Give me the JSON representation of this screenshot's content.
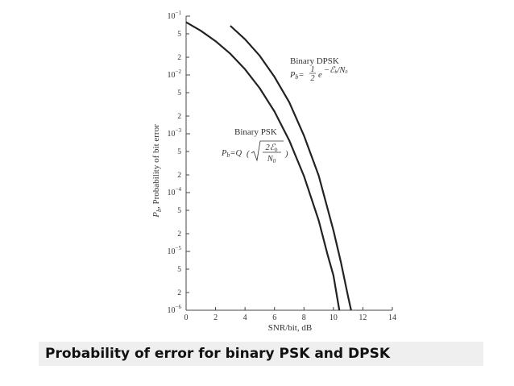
{
  "caption": "Probability of error for binary PSK and DPSK",
  "chart_data": {
    "type": "line",
    "title": "",
    "xlabel": "SNR/bit, dB",
    "ylabel": "Pb, Probability of bit error",
    "ylabel_parts": {
      "symbol": "P",
      "subscript": "b",
      "rest": ", Probability of bit error"
    },
    "xlim": [
      0,
      14
    ],
    "ylim": [
      1e-06,
      0.1
    ],
    "yscale": "log",
    "grid": false,
    "x_ticks": [
      "0",
      "2",
      "4",
      "6",
      "8",
      "10",
      "12",
      "14"
    ],
    "y_decades": [
      {
        "base": "10",
        "exp": "−1"
      },
      {
        "base": "10",
        "exp": "−2"
      },
      {
        "base": "10",
        "exp": "−3"
      },
      {
        "base": "10",
        "exp": "−4"
      },
      {
        "base": "10",
        "exp": "−5"
      },
      {
        "base": "10",
        "exp": "−6"
      }
    ],
    "y_minor_labels": [
      "5",
      "2"
    ],
    "series": [
      {
        "name": "Binary PSK",
        "formula": "Pb = Q(√(2εb/N0))",
        "x": [
          0,
          1,
          2,
          3,
          4,
          5,
          6,
          7,
          8,
          9,
          9.6,
          10,
          10.4
        ],
        "y": [
          0.0786,
          0.0563,
          0.0375,
          0.0229,
          0.0125,
          0.00595,
          0.00239,
          0.000773,
          0.000191,
          3.36e-05,
          8.9e-06,
          3.9e-06,
          1e-06
        ]
      },
      {
        "name": "Binary DPSK",
        "formula": "Pb = ½ e^(−εb/N0)",
        "x": [
          3,
          4,
          5,
          6,
          7,
          8,
          9,
          10,
          10.5,
          11,
          11.2
        ],
        "y": [
          0.0684,
          0.0404,
          0.0212,
          0.00927,
          0.00344,
          0.00093,
          0.000194,
          2.27e-05,
          6.7e-06,
          1.7e-06,
          1e-06
        ]
      }
    ]
  }
}
